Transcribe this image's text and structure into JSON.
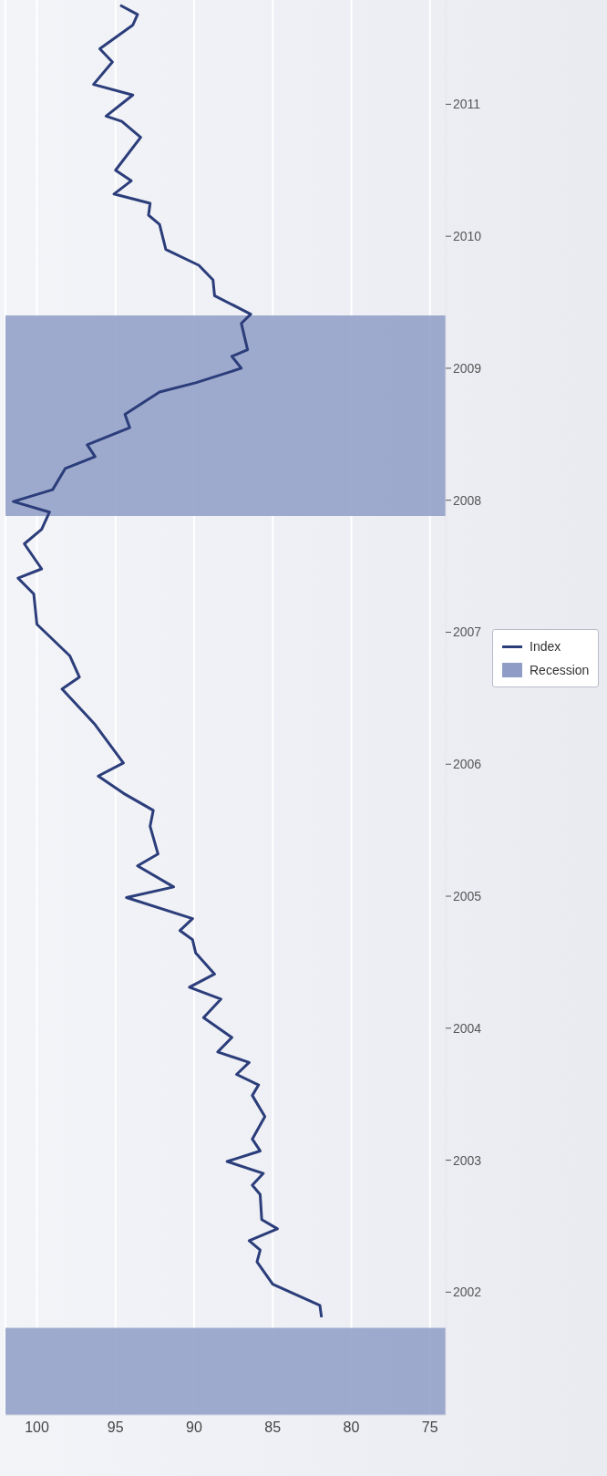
{
  "chart_data": {
    "type": "line",
    "x": [
      81.9,
      82.0,
      85.0,
      86.0,
      85.8,
      86.5,
      84.7,
      85.7,
      85.8,
      86.3,
      85.6,
      87.9,
      85.8,
      86.3,
      85.5,
      86.3,
      85.9,
      87.3,
      86.5,
      88.5,
      87.6,
      89.4,
      88.3,
      90.3,
      88.7,
      89.9,
      90.1,
      90.9,
      90.1,
      94.3,
      91.3,
      93.6,
      92.3,
      92.8,
      92.6,
      94.5,
      96.1,
      94.5,
      96.3,
      98.4,
      97.3,
      97.9,
      100.0,
      100.2,
      101.2,
      99.7,
      100.8,
      99.7,
      99.2,
      101.5,
      99.0,
      98.2,
      96.3,
      96.8,
      94.1,
      94.4,
      92.2,
      89.9,
      87.0,
      87.6,
      86.6,
      87.0,
      86.4,
      88.7,
      88.8,
      89.7,
      91.8,
      92.2,
      92.9,
      92.8,
      95.1,
      94.0,
      95.0,
      93.4,
      94.6,
      95.6,
      93.9,
      96.4,
      95.2,
      96.0,
      93.9,
      93.6,
      94.7
    ],
    "series": [
      {
        "name": "Index",
        "color": "#2b3d7a",
        "values": [
          2001.81,
          2001.9,
          2002.06,
          2002.23,
          2002.32,
          2002.39,
          2002.48,
          2002.55,
          2002.74,
          2002.81,
          2002.9,
          2002.99,
          2003.07,
          2003.16,
          2003.33,
          2003.49,
          2003.57,
          2003.65,
          2003.74,
          2003.82,
          2003.93,
          2004.08,
          2004.22,
          2004.31,
          2004.41,
          2004.57,
          2004.67,
          2004.74,
          2004.83,
          2004.99,
          2005.07,
          2005.23,
          2005.32,
          2005.53,
          2005.65,
          2005.78,
          2005.91,
          2006.01,
          2006.3,
          2006.57,
          2006.66,
          2006.82,
          2007.06,
          2007.29,
          2007.41,
          2007.48,
          2007.67,
          2007.78,
          2007.91,
          2007.99,
          2008.08,
          2008.24,
          2008.33,
          2008.42,
          2008.55,
          2008.65,
          2008.82,
          2008.89,
          2009.0,
          2009.09,
          2009.14,
          2009.34,
          2009.41,
          2009.55,
          2009.67,
          2009.78,
          2009.9,
          2010.09,
          2010.16,
          2010.25,
          2010.32,
          2010.42,
          2010.5,
          2010.75,
          2010.87,
          2010.91,
          2011.07,
          2011.15,
          2011.32,
          2011.42,
          2011.6,
          2011.68,
          2011.75
        ]
      }
    ],
    "xlim": [
      102,
      74
    ],
    "xticks": [
      75,
      80,
      85,
      90,
      95,
      100
    ],
    "ylim": [
      2001.07,
      2011.79
    ],
    "yticks": [
      2002,
      2003,
      2004,
      2005,
      2006,
      2007,
      2008,
      2009,
      2010,
      2011
    ],
    "bands": [
      {
        "axis": "y",
        "from": 2007.88,
        "to": 2009.4,
        "label": "Recession",
        "color": "#8e9cc6"
      },
      {
        "axis": "y",
        "from": 2001.07,
        "to": 2001.73,
        "color": "#8e9cc6"
      }
    ],
    "grid": "x",
    "legend": "right"
  }
}
